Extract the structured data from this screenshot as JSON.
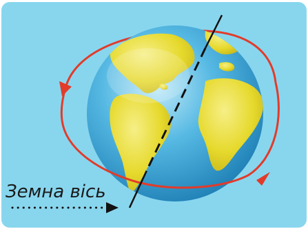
{
  "diagram": {
    "axis_label": "Земна вісь"
  },
  "colors": {
    "background": "#88d6ee",
    "ocean": "#3aa7d6",
    "land": "#e9df3b",
    "orbit_arrow": "#e23b2a",
    "axis": "#111111"
  }
}
